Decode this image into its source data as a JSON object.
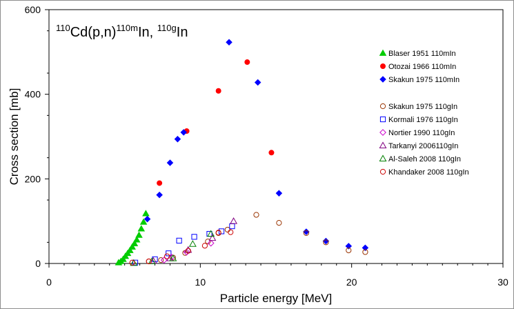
{
  "chart_data": {
    "type": "scatter",
    "title": "",
    "annotation": {
      "parts": [
        {
          "text": "110",
          "sup": true
        },
        {
          "text": "Cd(p,n)",
          "sup": false
        },
        {
          "text": "110m",
          "sup": true
        },
        {
          "text": "In, ",
          "sup": false
        },
        {
          "text": "110g",
          "sup": true
        },
        {
          "text": "In",
          "sup": false
        }
      ]
    },
    "xlabel": "Particle energy [MeV]",
    "ylabel": "Cross section [mb]",
    "xlim": [
      0,
      30
    ],
    "ylim": [
      0,
      600
    ],
    "x_ticks": [
      0,
      10,
      20,
      30
    ],
    "y_ticks": [
      0,
      200,
      400,
      600
    ],
    "grid": false,
    "legend_position": "right",
    "series": [
      {
        "name": "Blaser 1951 110mIn",
        "marker": "triangle",
        "filled": true,
        "color": "#00cc00",
        "x": [
          4.6,
          4.75,
          4.9,
          5.05,
          5.2,
          5.35,
          5.5,
          5.65,
          5.8,
          5.95,
          6.1,
          6.25,
          6.4
        ],
        "y": [
          2,
          5,
          10,
          17,
          24,
          31,
          39,
          47,
          56,
          67,
          82,
          98,
          118
        ]
      },
      {
        "name": "Otozai 1966 110mIn",
        "marker": "circle",
        "filled": true,
        "color": "#ff0000",
        "x": [
          7.3,
          9.1,
          11.2,
          13.1,
          14.7
        ],
        "y": [
          190,
          313,
          408,
          476,
          262
        ]
      },
      {
        "name": "Skakun 1975 110mIn",
        "marker": "diamond",
        "filled": true,
        "color": "#0000ff",
        "x": [
          6.5,
          7.3,
          8.0,
          8.5,
          8.9,
          11.9,
          13.8,
          15.2,
          17.0,
          18.3,
          19.8,
          20.9
        ],
        "y": [
          105,
          162,
          238,
          294,
          310,
          523,
          428,
          166,
          75,
          53,
          41,
          37
        ]
      },
      {
        "name": "Skakun 1975 110gIn",
        "marker": "circle",
        "filled": false,
        "color": "#993300",
        "x": [
          6.6,
          7.4,
          8.2,
          9.0,
          10.5,
          11.2,
          11.8,
          13.7,
          15.2,
          17.0,
          18.3,
          19.8,
          20.9
        ],
        "y": [
          5,
          8,
          14,
          25,
          52,
          72,
          80,
          115,
          96,
          72,
          50,
          31,
          27
        ]
      },
      {
        "name": "Kormali 1976 110gIn",
        "marker": "square",
        "filled": false,
        "color": "#0000ff",
        "x": [
          5.7,
          7.0,
          7.9,
          8.6,
          9.6,
          10.6,
          11.4,
          12.1
        ],
        "y": [
          2,
          10,
          24,
          54,
          63,
          70,
          76,
          88
        ]
      },
      {
        "name": "Nortier 1990 110gIn",
        "marker": "diamond",
        "filled": false,
        "color": "#cc00cc",
        "x": [
          7.6,
          8.1,
          9.1,
          10.7
        ],
        "y": [
          8,
          15,
          27,
          48
        ]
      },
      {
        "name": "Tarkanyi 2006110gIn",
        "marker": "triangle",
        "filled": false,
        "color": "#800080",
        "x": [
          6.9,
          8.0,
          9.2,
          10.8,
          12.2
        ],
        "y": [
          6,
          12,
          32,
          60,
          100
        ]
      },
      {
        "name": "Al-Saleh 2008 110gIn",
        "marker": "triangle",
        "filled": false,
        "color": "#008000",
        "x": [
          5.6,
          6.8,
          8.2,
          9.5,
          10.7
        ],
        "y": [
          1,
          5,
          12,
          46,
          70
        ]
      },
      {
        "name": "Khandaker 2008 110gIn",
        "marker": "circle",
        "filled": false,
        "color": "#cc0000",
        "x": [
          5.5,
          6.6,
          7.8,
          9.2,
          10.3,
          11.2,
          12.0
        ],
        "y": [
          2,
          5,
          17,
          30,
          42,
          73,
          74
        ]
      }
    ]
  }
}
